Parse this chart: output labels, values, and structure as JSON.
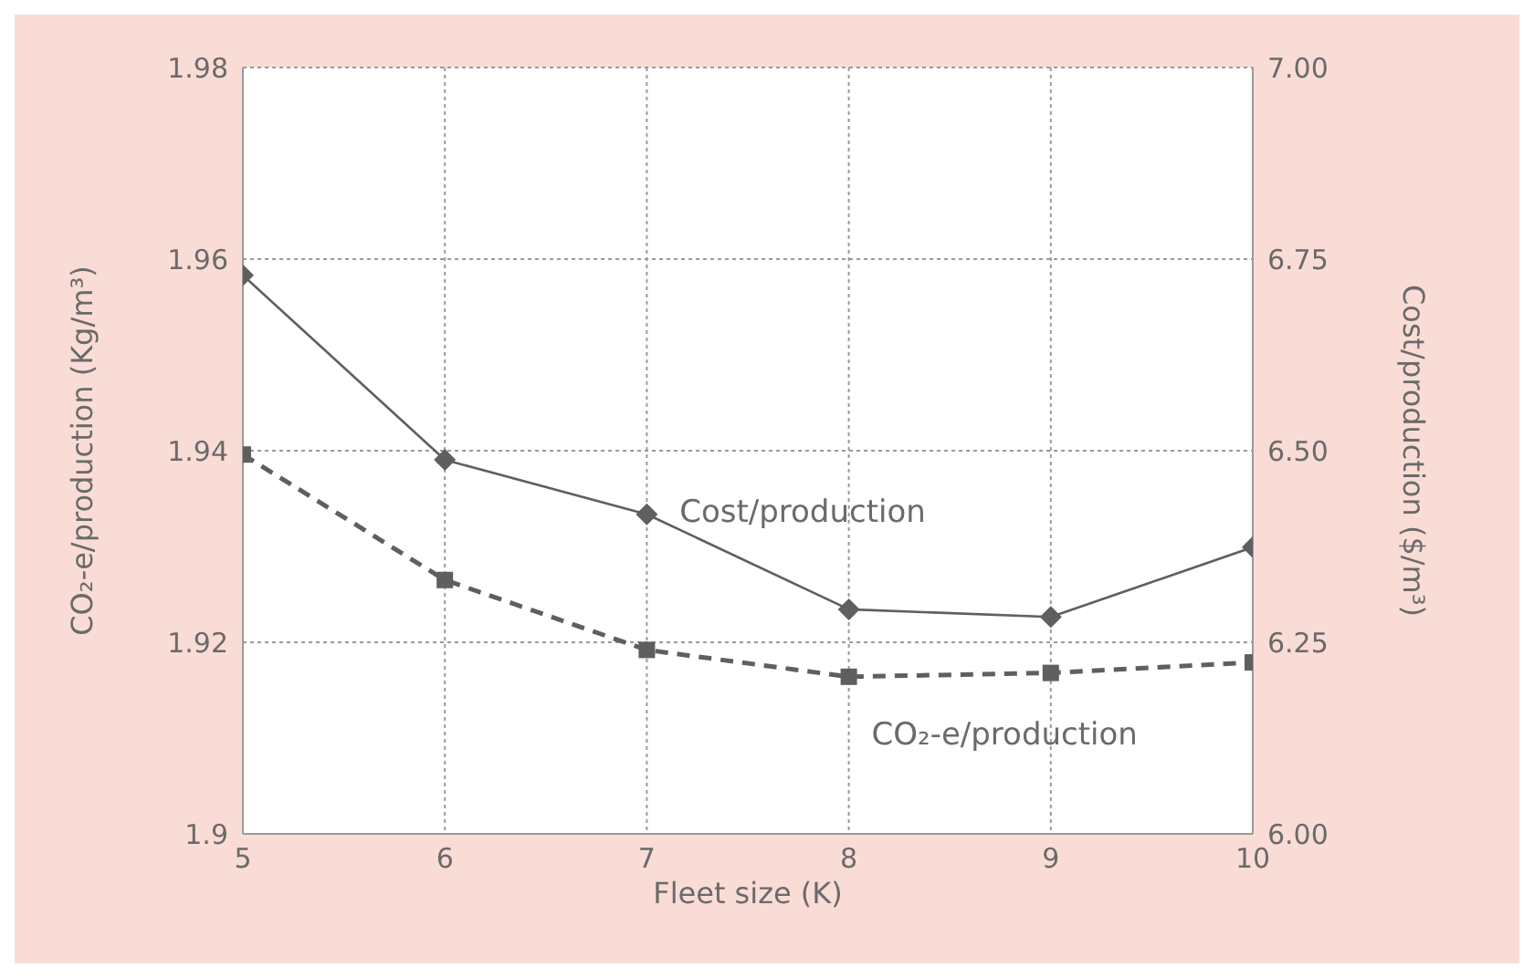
{
  "chart_data": {
    "type": "line",
    "xlabel": "Fleet size (K)",
    "ylabel": "CO₂-e/production (Kg/m³)",
    "y2label": "Cost/production ($/m³)",
    "x": [
      5,
      6,
      7,
      8,
      9,
      10
    ],
    "xlim": [
      5,
      10
    ],
    "xticks": [
      5,
      6,
      7,
      8,
      9,
      10
    ],
    "ylim": [
      1.9,
      1.98
    ],
    "yticks": [
      1.9,
      1.92,
      1.94,
      1.96,
      1.98
    ],
    "y2lim": [
      6,
      7
    ],
    "y2ticks": [
      {
        "value": 6,
        "label": "6.00"
      },
      {
        "value": 6.25,
        "label": "6.25"
      },
      {
        "value": 6.5,
        "label": "6.50"
      },
      {
        "value": 6.75,
        "label": "6.75"
      },
      {
        "value": 7,
        "label": "7.00"
      }
    ],
    "grid": true,
    "series": [
      {
        "name": "Cost/production",
        "color": "#5f5f5f",
        "axis": "y2",
        "marker": "diamond",
        "line_style": "solid",
        "values": [
          6.729,
          6.488,
          6.417,
          6.293,
          6.283,
          6.374
        ]
      },
      {
        "name": "CO₂-e/production",
        "color": "#5f5f5f",
        "axis": "y",
        "marker": "square",
        "line_style": "dashed",
        "values": [
          1.9396,
          1.9265,
          1.9192,
          1.9164,
          1.9168,
          1.9179
        ]
      }
    ]
  }
}
